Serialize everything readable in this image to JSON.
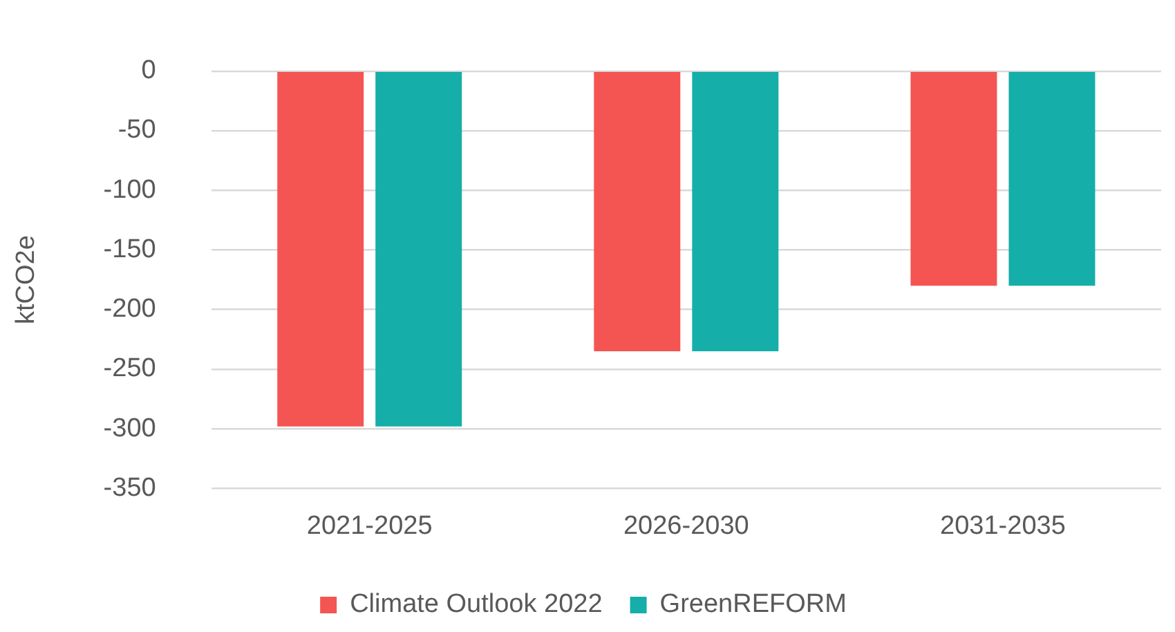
{
  "chart_data": {
    "type": "bar",
    "ylabel": "ktCO2e",
    "categories": [
      "2021-2025",
      "2026-2030",
      "2031-2035"
    ],
    "series": [
      {
        "name": "Climate Outlook 2022",
        "color": "#f45552",
        "values": [
          -298,
          -235,
          -180
        ]
      },
      {
        "name": "GreenREFORM",
        "color": "#15aea9",
        "values": [
          -298,
          -235,
          -180
        ]
      }
    ],
    "ylim": [
      -350,
      0
    ],
    "yticks": [
      -350,
      -300,
      -250,
      -200,
      -150,
      -100,
      -50,
      0
    ],
    "grid": "y",
    "legend": "bottom"
  }
}
